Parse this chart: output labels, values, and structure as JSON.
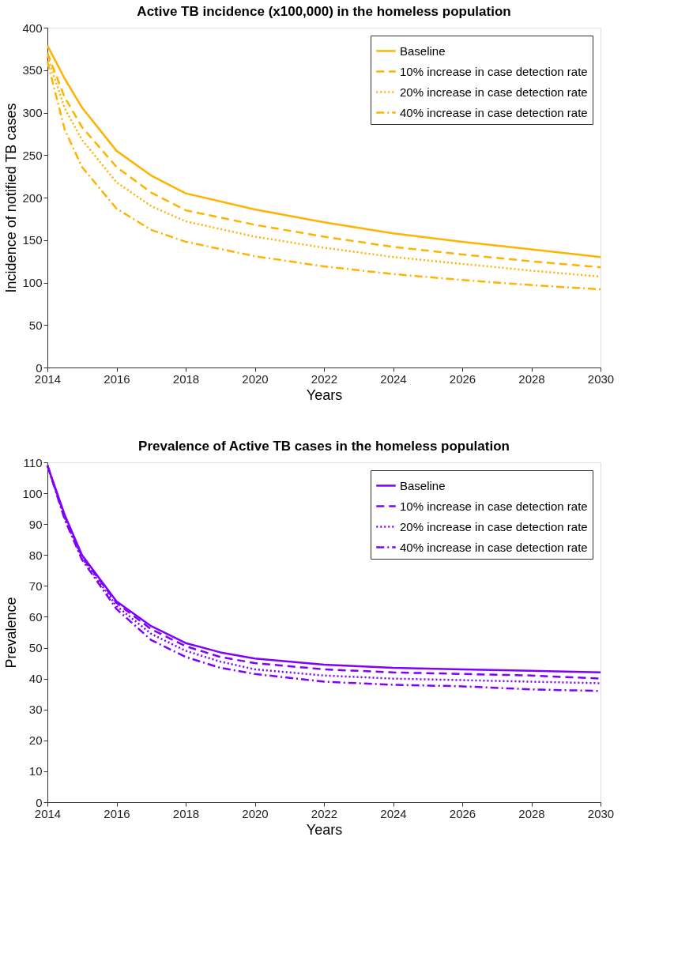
{
  "chart_data": [
    {
      "type": "line",
      "title": "Active TB incidence (x100,000) in the homeless population",
      "xlabel": "Years",
      "ylabel": "Incidence of notified TB cases",
      "x": [
        2014,
        2014.5,
        2015,
        2016,
        2017,
        2018,
        2020,
        2022,
        2024,
        2026,
        2028,
        2030
      ],
      "xlim": [
        2014,
        2030
      ],
      "xticks": [
        2014,
        2016,
        2018,
        2020,
        2022,
        2024,
        2026,
        2028,
        2030
      ],
      "ylim": [
        0,
        400
      ],
      "yticks": [
        0,
        50,
        100,
        150,
        200,
        250,
        300,
        350,
        400
      ],
      "legend": "top right",
      "grid": false,
      "series": [
        {
          "name": "Baseline",
          "color": "#ffb300",
          "line_style": "solid",
          "values": [
            379,
            340,
            306,
            255,
            226,
            205,
            186,
            171,
            158,
            148,
            139,
            130
          ]
        },
        {
          "name": "10% increase in case detection rate",
          "color": "#ffb300",
          "line_style": "dashed",
          "values": [
            370,
            318,
            283,
            236,
            206,
            185,
            168,
            154,
            142,
            133,
            125,
            118
          ]
        },
        {
          "name": "20% increase in case detection rate",
          "color": "#ffb300",
          "line_style": "dotted",
          "values": [
            366,
            305,
            268,
            218,
            190,
            172,
            154,
            141,
            130,
            122,
            114,
            107
          ]
        },
        {
          "name": "40% increase in case detection rate",
          "color": "#ffb300",
          "line_style": "dashdot",
          "values": [
            360,
            280,
            236,
            187,
            162,
            148,
            131,
            119,
            110,
            103,
            97,
            92
          ]
        }
      ]
    },
    {
      "type": "line",
      "title": "Prevalence of Active TB cases in the homeless population",
      "xlabel": "Years",
      "ylabel": "Prevalence",
      "x": [
        2014,
        2014.5,
        2015,
        2016,
        2017,
        2018,
        2019,
        2020,
        2022,
        2024,
        2026,
        2028,
        2030
      ],
      "xlim": [
        2014,
        2030
      ],
      "xticks": [
        2014,
        2016,
        2018,
        2020,
        2022,
        2024,
        2026,
        2028,
        2030
      ],
      "ylim": [
        0,
        110
      ],
      "yticks": [
        0,
        10,
        20,
        30,
        40,
        50,
        60,
        70,
        80,
        90,
        100,
        110
      ],
      "legend": "top right",
      "grid": false,
      "series": [
        {
          "name": "Baseline",
          "color": "#8000ff",
          "line_style": "solid",
          "values": [
            109,
            93,
            80,
            65,
            57,
            51.5,
            48.5,
            46.5,
            44.5,
            43.5,
            43,
            42.5,
            42
          ]
        },
        {
          "name": "10% increase in case detection rate",
          "color": "#8000ff",
          "line_style": "dashed",
          "values": [
            109,
            92.5,
            79.5,
            64.5,
            56,
            50.5,
            47,
            45,
            43,
            42,
            41.5,
            41,
            40
          ]
        },
        {
          "name": "20% increase in case detection rate",
          "color": "#8000ff",
          "line_style": "dotted",
          "values": [
            109,
            92,
            79,
            63.5,
            54.5,
            49,
            45.5,
            43,
            41,
            40,
            39.5,
            39,
            38.5
          ]
        },
        {
          "name": "40% increase in case detection rate",
          "color": "#8000ff",
          "line_style": "dashdot",
          "values": [
            109,
            91.5,
            78.5,
            62.5,
            52.5,
            47,
            43.5,
            41.5,
            39,
            38,
            37.5,
            36.5,
            36
          ]
        }
      ]
    }
  ]
}
